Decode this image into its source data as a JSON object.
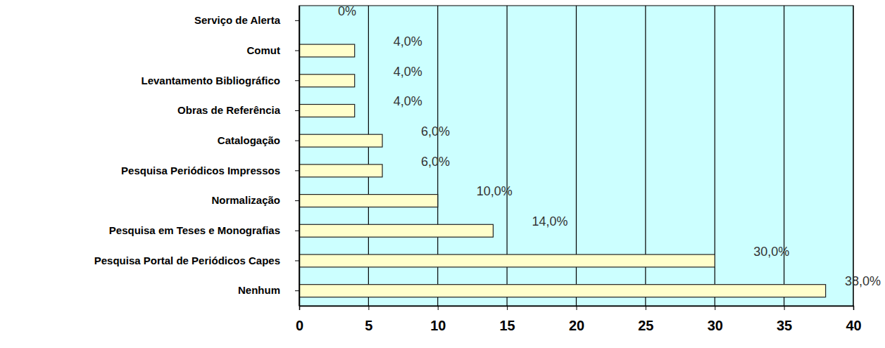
{
  "chart_data": {
    "type": "bar",
    "orientation": "horizontal",
    "categories": [
      "Serviço de Alerta",
      "Comut",
      "Levantamento Bibliográfico",
      "Obras de Referência",
      "Catalogação",
      "Pesquisa Periódicos Impressos",
      "Normalização",
      "Pesquisa em Teses e Monografias",
      "Pesquisa Portal de Periódicos Capes",
      "Nenhum"
    ],
    "values": [
      0,
      4,
      4,
      4,
      6,
      6,
      10,
      14,
      30,
      38
    ],
    "value_labels": [
      "0%",
      "4,0%",
      "4,0%",
      "4,0%",
      "6,0%",
      "6,0%",
      "10,0%",
      "14,0%",
      "30,0%",
      "38,0%"
    ],
    "data_labels": true,
    "color": "#ffffcc",
    "xlim": [
      0,
      40
    ],
    "xticks": [
      0,
      5,
      10,
      15,
      20,
      25,
      30,
      35,
      40
    ],
    "grid": true
  }
}
